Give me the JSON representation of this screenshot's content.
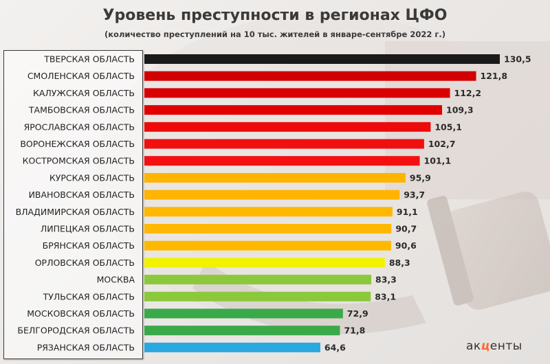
{
  "title": "Уровень преступности в регионах ЦФО",
  "subtitle": "(количество преступлений на 10 тыс. жителей в январе-сентябре 2022 г.)",
  "logo": {
    "part1": "ак",
    "part2": "ц",
    "part3": "енты"
  },
  "chart_data": {
    "type": "bar",
    "orientation": "horizontal",
    "title": "Уровень преступности в регионах ЦФО",
    "subtitle": "(количество преступлений на 10 тыс. жителей в январе-сентябре 2022 г.)",
    "categories": [
      "ТВЕРСКАЯ ОБЛАСТЬ",
      "СМОЛЕНСКАЯ ОБЛАСТЬ",
      "КАЛУЖСКАЯ ОБЛАСТЬ",
      "ТАМБОВСКАЯ ОБЛАСТЬ",
      "ЯРОСЛАВСКАЯ ОБЛАСТЬ",
      "ВОРОНЕЖСКАЯ ОБЛАСТЬ",
      "КОСТРОМСКАЯ ОБЛАСТЬ",
      "КУРСКАЯ ОБЛАСТЬ",
      "ИВАНОВСКАЯ ОБЛАСТЬ",
      "ВЛАДИМИРСКАЯ ОБЛАСТЬ",
      "ЛИПЕЦКАЯ ОБЛАСТЬ",
      "БРЯНСКАЯ ОБЛАСТЬ",
      "ОРЛОВСКАЯ ОБЛАСТЬ",
      "МОСКВА",
      "ТУЛЬСКАЯ ОБЛАСТЬ",
      "МОСКОВСКАЯ ОБЛАСТЬ",
      "БЕЛГОРОДСКАЯ ОБЛАСТЬ",
      "РЯЗАНСКАЯ ОБЛАСТЬ"
    ],
    "values": [
      130.5,
      121.8,
      112.2,
      109.3,
      105.1,
      102.7,
      101.1,
      95.9,
      93.7,
      91.1,
      90.7,
      90.6,
      88.3,
      83.3,
      83.1,
      72.9,
      71.8,
      64.6
    ],
    "value_labels": [
      "130,5",
      "121,8",
      "112,2",
      "109,3",
      "105,1",
      "102,7",
      "101,1",
      "95,9",
      "93,7",
      "91,1",
      "90,7",
      "90,6",
      "88,3",
      "83,3",
      "83,1",
      "72,9",
      "71,8",
      "64,6"
    ],
    "colors": [
      "#1a1a1a",
      "#d20000",
      "#d80000",
      "#e00000",
      "#ee0a0a",
      "#f01010",
      "#f41010",
      "#ffb400",
      "#ffb400",
      "#ffb800",
      "#ffb800",
      "#ffb800",
      "#f2f200",
      "#8cc83c",
      "#8cc83c",
      "#3aa94a",
      "#3aa94a",
      "#2aa8e0"
    ],
    "xlim": [
      0,
      130.5
    ],
    "grid": false,
    "legend": "none"
  }
}
